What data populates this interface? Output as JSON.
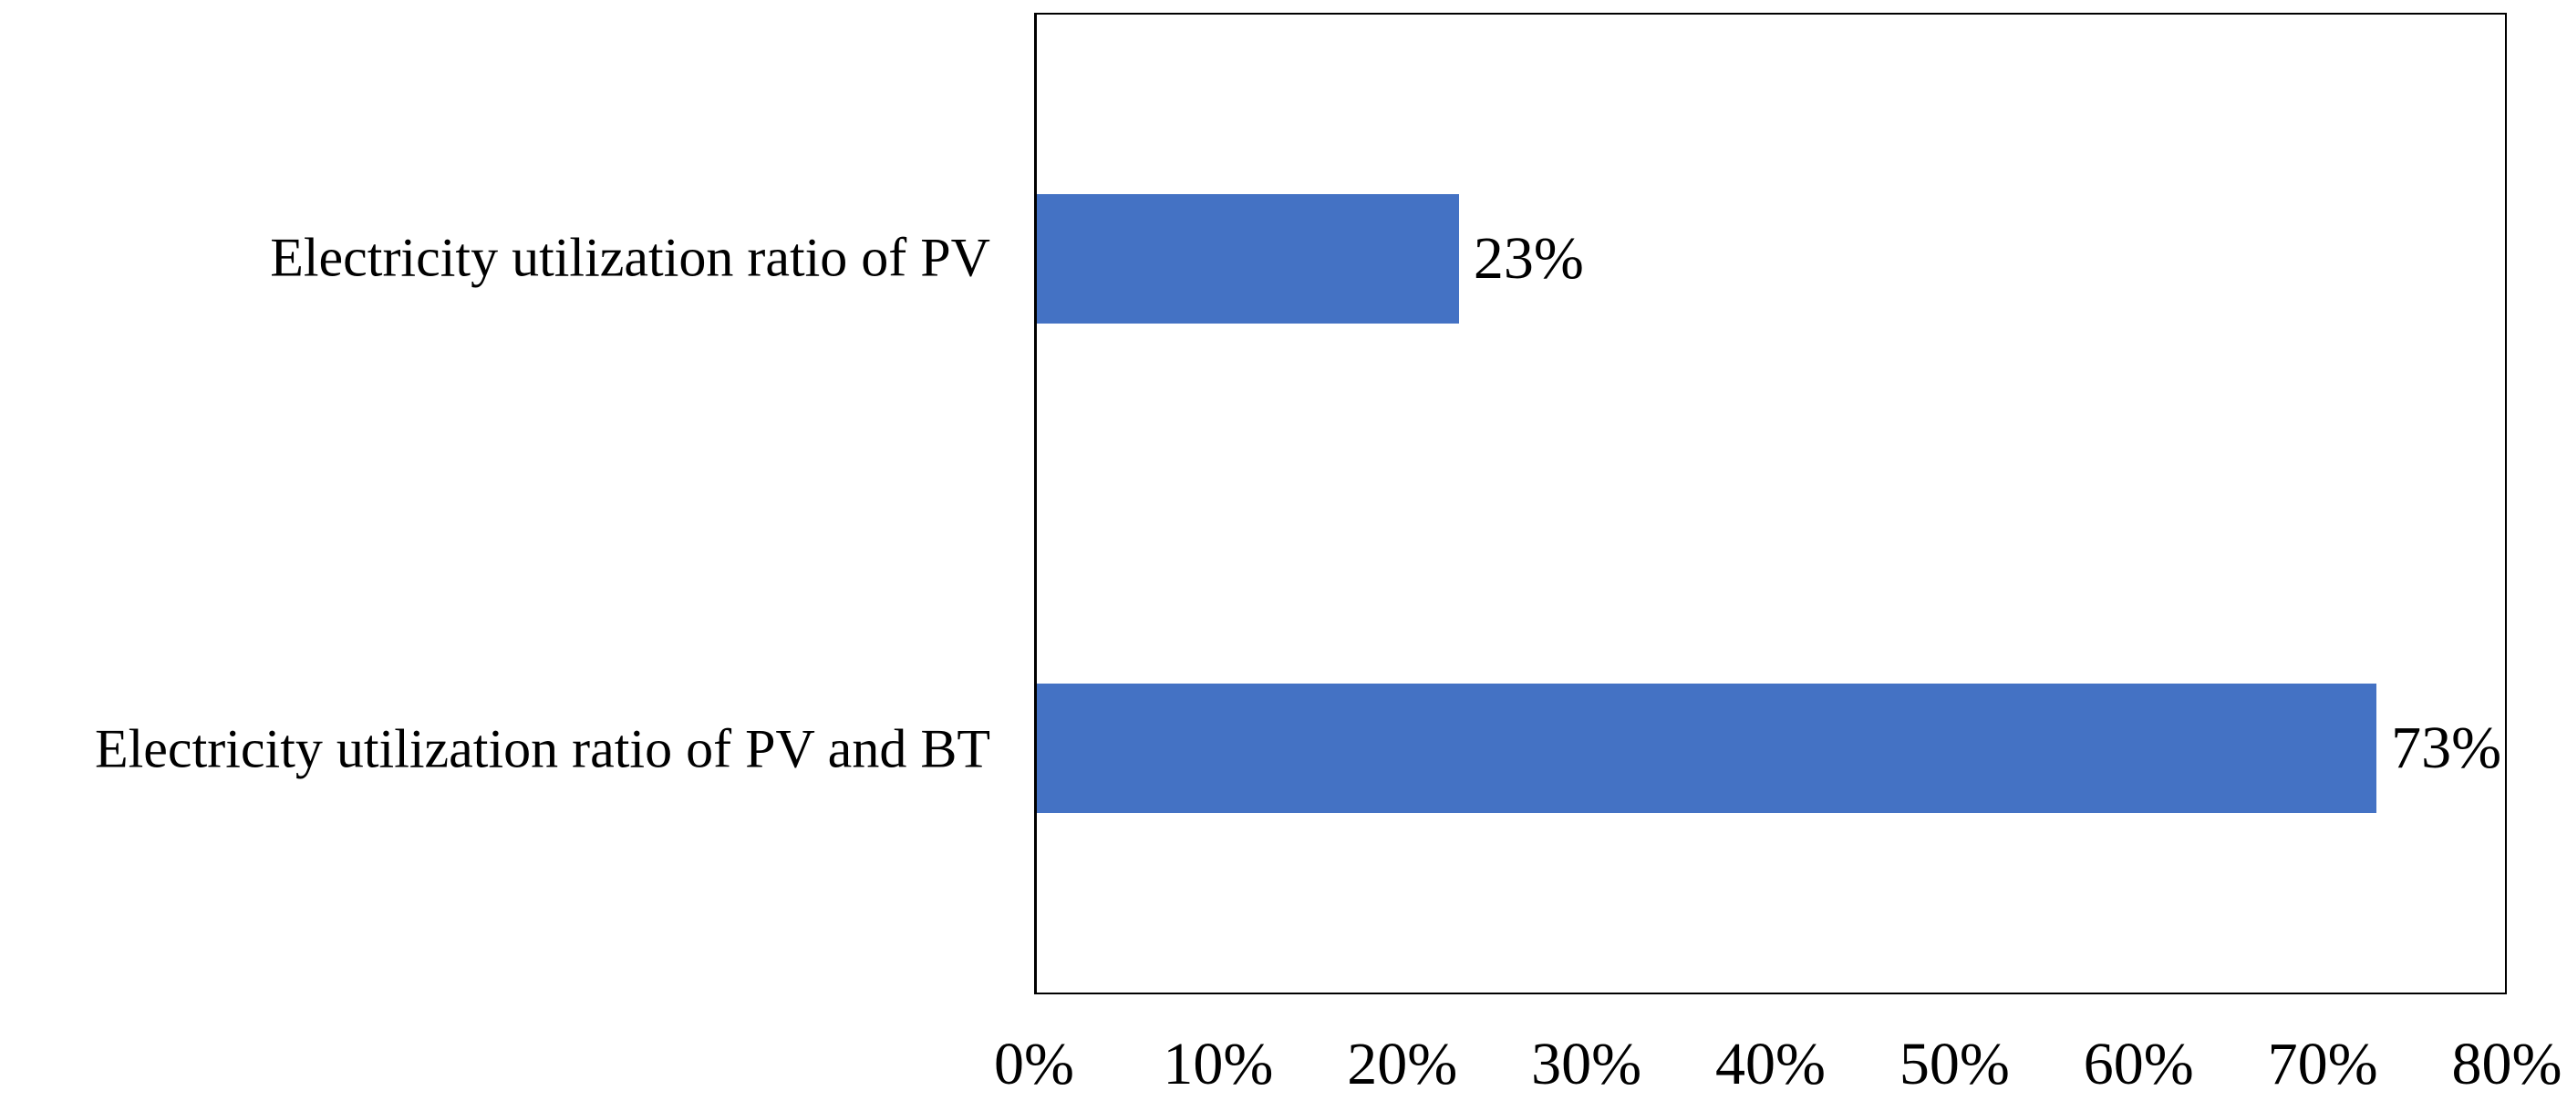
{
  "chart_data": {
    "type": "bar",
    "orientation": "horizontal",
    "title": "",
    "xlabel": "",
    "ylabel": "",
    "grid": false,
    "legend": null,
    "categories": [
      "Electricity utilization ratio of PV",
      "Electricity utilization ratio of PV and BT"
    ],
    "values": [
      23,
      73
    ],
    "value_labels": [
      "23%",
      "73%"
    ],
    "xlim": [
      0,
      80
    ],
    "x_ticks": [
      0,
      10,
      20,
      30,
      40,
      50,
      60,
      70,
      80
    ],
    "x_tick_labels": [
      "0%",
      "10%",
      "20%",
      "30%",
      "40%",
      "50%",
      "60%",
      "70%",
      "80%"
    ],
    "bar_color": "#4472C4",
    "plot_border_color": "#000000",
    "text_color": "#000000",
    "plot_background": "#ffffff"
  }
}
